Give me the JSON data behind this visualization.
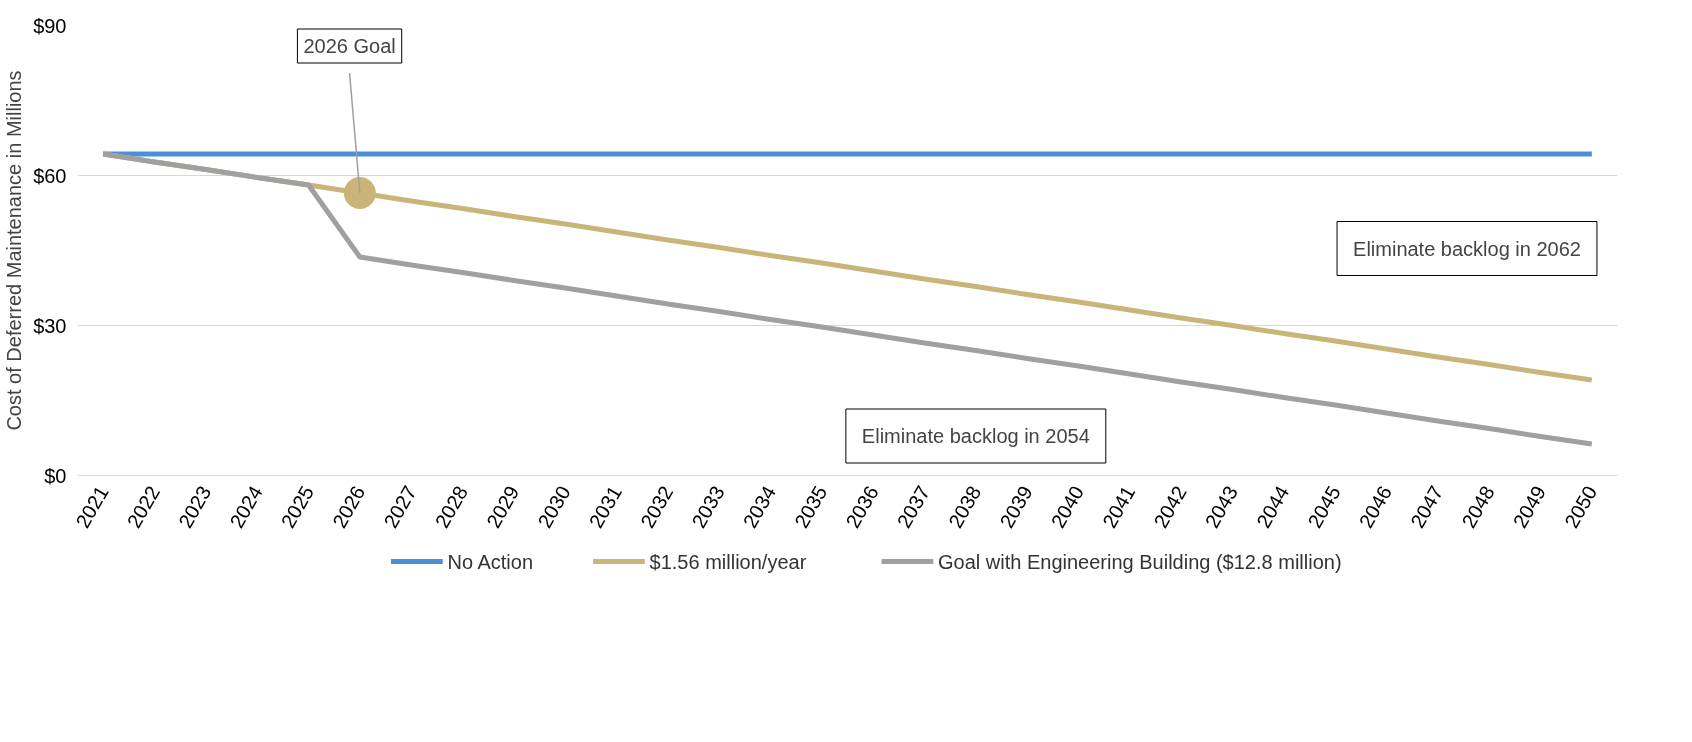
{
  "chart_data": {
    "type": "line",
    "ylabel": "Cost of Deferred Maintenance in Millions",
    "categories": [
      "2021",
      "2022",
      "2023",
      "2024",
      "2025",
      "2026",
      "2027",
      "2028",
      "2029",
      "2030",
      "2031",
      "2032",
      "2033",
      "2034",
      "2035",
      "2036",
      "2037",
      "2038",
      "2039",
      "2040",
      "2041",
      "2042",
      "2043",
      "2044",
      "2045",
      "2046",
      "2047",
      "2048",
      "2049",
      "2050"
    ],
    "ylim": [
      0,
      90
    ],
    "yticks": [
      {
        "value": 0,
        "label": "$0"
      },
      {
        "value": 30,
        "label": "$30"
      },
      {
        "value": 60,
        "label": "$60"
      },
      {
        "value": 90,
        "label": "$90"
      }
    ],
    "grid": "y",
    "legend": "bottom",
    "marker": "none",
    "line_style": "solid",
    "series": [
      {
        "name": "No Action",
        "color": "#4a90d9",
        "values": [
          64.3,
          64.3,
          64.3,
          64.3,
          64.3,
          64.3,
          64.3,
          64.3,
          64.3,
          64.3,
          64.3,
          64.3,
          64.3,
          64.3,
          64.3,
          64.3,
          64.3,
          64.3,
          64.3,
          64.3,
          64.3,
          64.3,
          64.3,
          64.3,
          64.3,
          64.3,
          64.3,
          64.3,
          64.3,
          64.3
        ]
      },
      {
        "name": "$1.56 million/year",
        "color": "#c9b47a",
        "values": [
          64.3,
          62.7,
          61.2,
          59.6,
          58.1,
          56.5,
          54.9,
          53.4,
          51.8,
          50.3,
          48.7,
          47.1,
          45.6,
          44.0,
          42.5,
          40.9,
          39.3,
          37.8,
          36.2,
          34.7,
          33.1,
          31.5,
          30.0,
          28.4,
          26.9,
          25.3,
          23.7,
          22.2,
          20.6,
          19.1
        ]
      },
      {
        "name": "Goal with Engineering Building ($12.8 million)",
        "color": "#a0a0a0",
        "values": [
          64.3,
          62.7,
          61.2,
          59.6,
          58.1,
          43.7,
          42.1,
          40.6,
          39.0,
          37.5,
          35.9,
          34.3,
          32.8,
          31.2,
          29.7,
          28.1,
          26.5,
          25.0,
          23.4,
          21.9,
          20.3,
          18.7,
          17.2,
          15.6,
          14.1,
          12.5,
          10.9,
          9.4,
          7.8,
          6.3
        ]
      }
    ],
    "annotations": [
      {
        "text": "2026 Goal",
        "x": "2026",
        "y": 56.5
      },
      "Eliminate backlog in 2062",
      "Eliminate backlog in 2054"
    ]
  }
}
